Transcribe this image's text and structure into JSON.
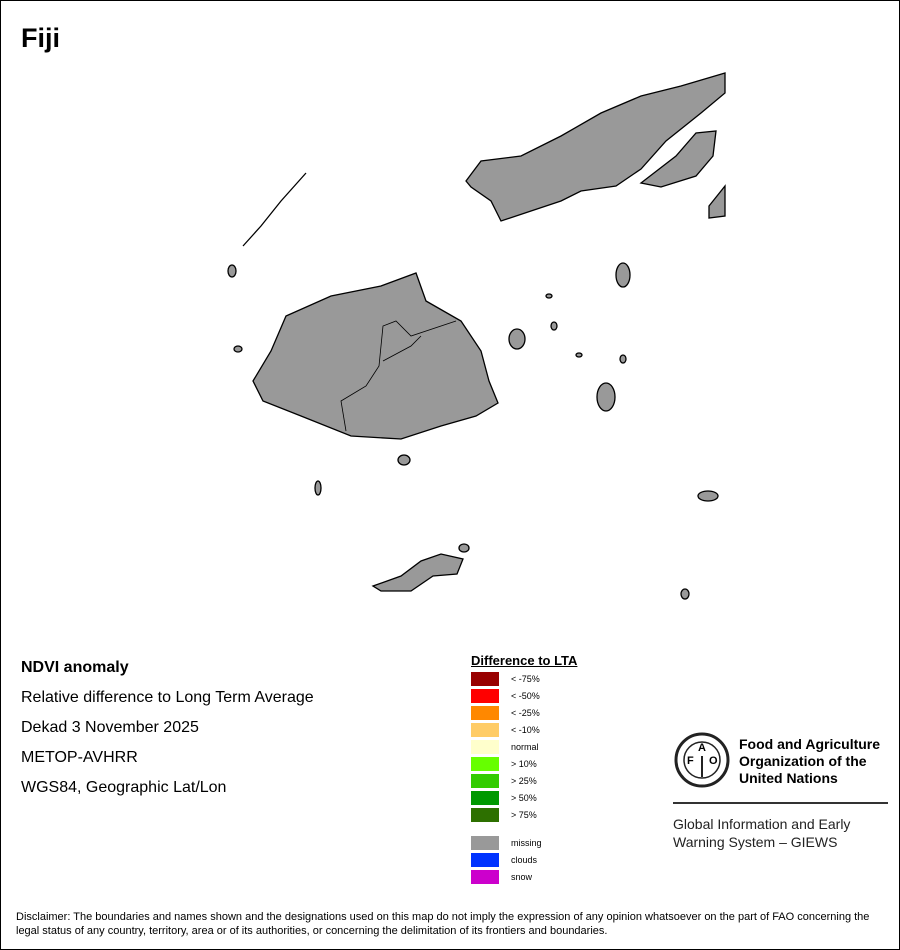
{
  "title": "Fiji",
  "info": [
    "NDVI anomaly",
    "Relative difference to Long Term Average",
    "Dekad 3 November 2025",
    "METOP-AVHRR",
    "WGS84, Geographic Lat/Lon"
  ],
  "legend": {
    "title": "Difference to LTA",
    "items": [
      {
        "label": "< -75%",
        "color": "#990000"
      },
      {
        "label": "< -50%",
        "color": "#ff0000"
      },
      {
        "label": "< -25%",
        "color": "#ff8800"
      },
      {
        "label": "< -10%",
        "color": "#ffcc66"
      },
      {
        "label": "normal",
        "color": "#ffffcc"
      },
      {
        "label": "> 10%",
        "color": "#66ff00"
      },
      {
        "label": "> 25%",
        "color": "#33cc00"
      },
      {
        "label": "> 50%",
        "color": "#009900"
      },
      {
        "label": "> 75%",
        "color": "#2d7000"
      }
    ],
    "extra": [
      {
        "label": "missing",
        "color": "#999999"
      },
      {
        "label": "clouds",
        "color": "#0033ff"
      },
      {
        "label": "snow",
        "color": "#cc00cc"
      }
    ]
  },
  "logo": {
    "org_name": [
      "Food and Agriculture",
      "Organization of the",
      "United Nations"
    ],
    "giews": [
      "Global Information and Early",
      "Warning System – GIEWS"
    ],
    "emblem_text": "FAO FIAT PANIS"
  },
  "disclaimer": "Disclaimer: The boundaries and names shown and the designations used on this map do not imply the expression of any opinion whatsoever on the part of FAO concerning the legal status of any country, territory, area or of its authorities, or concerning the delimitation of its frontiers and boundaries."
}
